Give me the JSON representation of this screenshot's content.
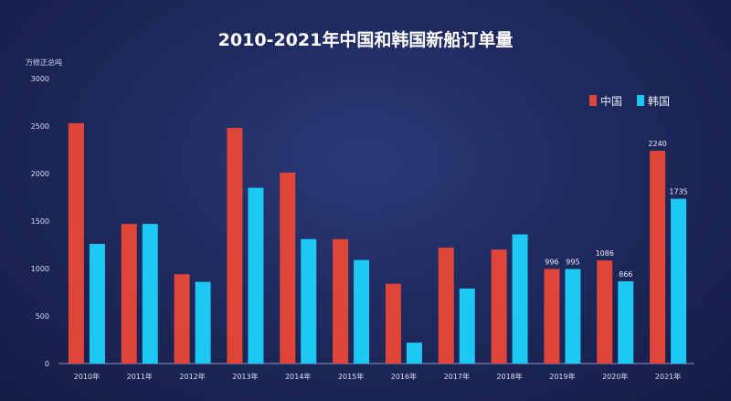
{
  "chart_data": {
    "type": "bar",
    "title": "2010-2021年中国和韩国新船订单量",
    "unit_label": "万修正总吨",
    "categories": [
      "2010年",
      "2011年",
      "2012年",
      "2013年",
      "2014年",
      "2015年",
      "2016年",
      "2017年",
      "2018年",
      "2019年",
      "2020年",
      "2021年"
    ],
    "yticks": [
      "0",
      "500",
      "1000",
      "1500",
      "2000",
      "2500",
      "3000"
    ],
    "ylim": [
      0,
      3000
    ],
    "legend_position": "top-right",
    "series": [
      {
        "name": "中国",
        "color": "#e0453a",
        "values": [
          2530,
          1470,
          940,
          2480,
          2010,
          1310,
          840,
          1220,
          1200,
          996,
          1086,
          2240
        ],
        "labels": [
          "",
          "",
          "",
          "",
          "",
          "",
          "",
          "",
          "",
          "996",
          "1086",
          "2240"
        ]
      },
      {
        "name": "韩国",
        "color": "#1ec8f5",
        "values": [
          1260,
          1470,
          860,
          1850,
          1310,
          1090,
          220,
          790,
          1360,
          995,
          866,
          1735
        ],
        "labels": [
          "",
          "",
          "",
          "",
          "",
          "",
          "",
          "",
          "",
          "995",
          "866",
          "1735"
        ]
      }
    ]
  }
}
